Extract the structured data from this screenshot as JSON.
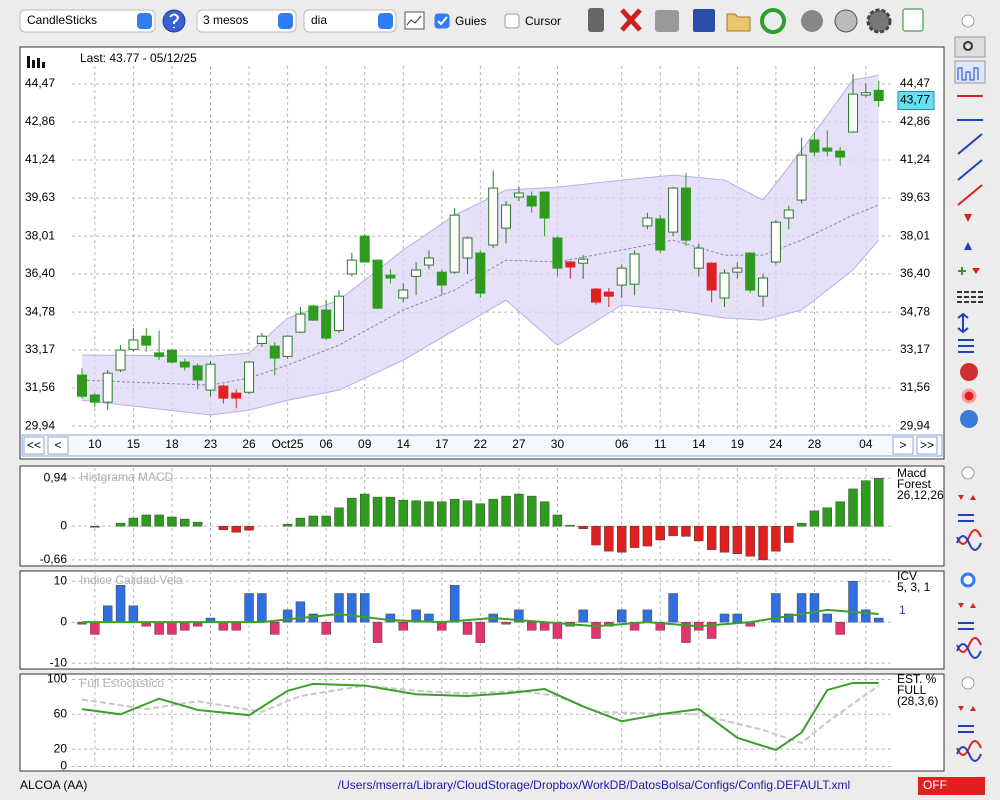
{
  "toolbar": {
    "selects": [
      "CandleSticks",
      "3 mesos",
      "dia"
    ],
    "checkboxes": [
      {
        "label": "Guies",
        "checked": true
      },
      {
        "label": "Cursor",
        "checked": false
      }
    ]
  },
  "chart_data": [
    {
      "type": "candlestick",
      "title": "Last: 43.77 - 05/12/25",
      "categories": [
        null,
        "10",
        null,
        null,
        "15",
        null,
        null,
        "18",
        null,
        null,
        "23",
        null,
        null,
        "26",
        null,
        null,
        "Oct25",
        null,
        null,
        "06",
        null,
        null,
        "09",
        null,
        null,
        "14",
        null,
        null,
        "17",
        null,
        null,
        "22",
        null,
        null,
        "27",
        null,
        null,
        "30",
        null,
        null,
        null,
        null,
        "06",
        null,
        null,
        "11",
        null,
        null,
        "14",
        null,
        null,
        "19",
        null,
        null,
        "24",
        null,
        null,
        "28",
        null,
        null,
        null,
        "04",
        null
      ],
      "open": [
        32.11,
        31.26,
        30.96,
        32.32,
        33.2,
        33.76,
        33.05,
        33.17,
        32.66,
        32.5,
        31.47,
        31.64,
        31.34,
        31.38,
        33.45,
        33.34,
        32.9,
        33.93,
        35.04,
        34.87,
        34.0,
        36.4,
        38.01,
        36.99,
        36.35,
        35.38,
        36.3,
        36.78,
        36.48,
        36.48,
        37.08,
        37.29,
        37.63,
        38.35,
        39.67,
        39.71,
        39.88,
        37.93,
        36.91,
        36.86,
        35.76,
        35.63,
        35.93,
        35.97,
        38.44,
        38.74,
        38.18,
        40.05,
        36.65,
        36.86,
        35.38,
        36.48,
        37.29,
        35.46,
        36.91,
        38.78,
        39.54,
        42.09,
        41.75,
        41.62,
        42.43,
        44.0,
        44.2
      ],
      "high": [
        32.4,
        31.34,
        32.32,
        33.38,
        34.1,
        34.1,
        34.0,
        33.2,
        32.8,
        32.6,
        32.7,
        31.7,
        31.5,
        32.7,
        33.9,
        33.5,
        33.8,
        35.0,
        35.1,
        35.3,
        35.7,
        37.3,
        38.1,
        37.0,
        36.6,
        36.0,
        36.9,
        37.4,
        36.6,
        39.2,
        38.0,
        37.4,
        40.8,
        39.5,
        40.1,
        39.9,
        39.9,
        38.0,
        36.95,
        37.2,
        35.8,
        35.8,
        36.8,
        37.4,
        39.0,
        38.9,
        40.1,
        40.7,
        37.7,
        36.9,
        36.6,
        36.9,
        37.3,
        36.4,
        38.7,
        39.3,
        42.2,
        42.4,
        42.5,
        41.8,
        44.9,
        44.5,
        44.6
      ],
      "low": [
        31.1,
        30.75,
        30.62,
        32.23,
        33.1,
        33.1,
        32.75,
        32.6,
        32.3,
        31.5,
        31.2,
        30.9,
        30.7,
        31.3,
        33.3,
        32.1,
        32.8,
        33.9,
        34.4,
        33.6,
        33.9,
        36.3,
        36.9,
        34.9,
        36.0,
        35.2,
        35.5,
        36.6,
        35.5,
        36.4,
        36.4,
        35.4,
        37.5,
        37.7,
        39.5,
        39.0,
        38.0,
        36.3,
        36.2,
        36.2,
        35.1,
        35.0,
        35.4,
        35.5,
        38.3,
        37.3,
        38.0,
        37.6,
        36.3,
        35.2,
        35.0,
        36.2,
        35.6,
        35.0,
        36.8,
        38.3,
        39.4,
        41.4,
        41.4,
        41.0,
        42.4,
        43.9,
        43.5
      ],
      "close": [
        31.21,
        30.96,
        32.19,
        33.17,
        33.6,
        33.38,
        32.9,
        32.66,
        32.45,
        31.9,
        32.57,
        31.13,
        31.13,
        32.66,
        33.76,
        32.83,
        33.76,
        34.7,
        34.44,
        33.68,
        35.46,
        36.99,
        36.91,
        34.95,
        36.23,
        35.72,
        36.57,
        37.08,
        35.93,
        38.9,
        37.93,
        35.59,
        40.05,
        39.33,
        39.84,
        39.29,
        38.78,
        36.65,
        36.7,
        37.03,
        35.21,
        35.46,
        36.65,
        37.25,
        38.78,
        37.42,
        40.05,
        37.84,
        37.5,
        35.72,
        36.44,
        36.65,
        35.72,
        36.23,
        38.6,
        39.12,
        41.45,
        41.58,
        41.62,
        41.37,
        44.04,
        44.1,
        43.77
      ],
      "candle_colors": [
        "#2e9a1e",
        "#2e9a1e",
        "#ffffff",
        "#ffffff",
        "#ffffff",
        "#2e9a1e",
        "#2e9a1e",
        "#2e9a1e",
        "#2e9a1e",
        "#2e9a1e",
        "#ffffff",
        "#e02020",
        "#e02020",
        "#ffffff",
        "#ffffff",
        "#2e9a1e",
        "#ffffff",
        "#ffffff",
        "#2e9a1e",
        "#2e9a1e",
        "#ffffff",
        "#ffffff",
        "#2e9a1e",
        "#2e9a1e",
        "#2e9a1e",
        "#ffffff",
        "#ffffff",
        "#ffffff",
        "#2e9a1e",
        "#ffffff",
        "#ffffff",
        "#2e9a1e",
        "#ffffff",
        "#ffffff",
        "#ffffff",
        "#2e9a1e",
        "#2e9a1e",
        "#2e9a1e",
        "#e02020",
        "#ffffff",
        "#e02020",
        "#e02020",
        "#ffffff",
        "#ffffff",
        "#ffffff",
        "#2e9a1e",
        "#ffffff",
        "#2e9a1e",
        "#ffffff",
        "#e02020",
        "#ffffff",
        "#ffffff",
        "#2e9a1e",
        "#ffffff",
        "#ffffff",
        "#ffffff",
        "#ffffff",
        "#2e9a1e",
        "#2e9a1e",
        "#2e9a1e",
        "#ffffff",
        "#ffffff",
        "#2e9a1e"
      ],
      "hollow_edge": "#2a7a2a",
      "bands": {
        "x": [
          0,
          10,
          13,
          16,
          20,
          25,
          29,
          33,
          37,
          42,
          46,
          50,
          53,
          56,
          60,
          62
        ],
        "upper": [
          32.96,
          32.91,
          33.04,
          34.53,
          35.29,
          37.42,
          38.9,
          39.97,
          40.09,
          40.39,
          40.6,
          40.39,
          39.54,
          41.66,
          44.64,
          44.85
        ],
        "middle": [
          31.89,
          31.68,
          31.98,
          32.53,
          33.38,
          34.87,
          35.72,
          36.99,
          36.91,
          37.42,
          37.84,
          37.2,
          37.2,
          37.84,
          38.9,
          39.33
        ],
        "lower": [
          31.04,
          30.41,
          30.62,
          31.04,
          31.47,
          32.74,
          34.02,
          35.29,
          33.38,
          35.08,
          34.87,
          34.53,
          34.44,
          34.87,
          36.57,
          37.84
        ],
        "color": "#ddd6f7"
      },
      "last_price": {
        "value": 43.77,
        "label": "43,77"
      },
      "ylim": [
        29.69,
        45.15
      ],
      "yticks": [
        {
          "value": 29.94,
          "label": "29,94"
        },
        {
          "value": 31.56,
          "label": "31,56"
        },
        {
          "value": 33.17,
          "label": "33,17"
        },
        {
          "value": 34.78,
          "label": "34,78"
        },
        {
          "value": 36.4,
          "label": "36,40"
        },
        {
          "value": 38.01,
          "label": "38,01"
        },
        {
          "value": 39.63,
          "label": "39,63"
        },
        {
          "value": 41.24,
          "label": "41,24"
        },
        {
          "value": 42.86,
          "label": "42,86"
        },
        {
          "value": 44.47,
          "label": "44,47"
        }
      ],
      "grid": true,
      "nav": [
        "<<",
        "<",
        ">",
        ">>"
      ]
    },
    {
      "type": "bar",
      "title": "Histgrama MACD",
      "legend": [
        "Macd",
        "Forest",
        "26,12,26"
      ],
      "values": [
        0,
        -0.02,
        0,
        0.06,
        0.16,
        0.22,
        0.22,
        0.18,
        0.14,
        0.08,
        0,
        -0.07,
        -0.12,
        -0.08,
        0,
        0,
        0.04,
        0.16,
        0.2,
        0.2,
        0.36,
        0.55,
        0.63,
        0.57,
        0.57,
        0.51,
        0.5,
        0.48,
        0.48,
        0.53,
        0.5,
        0.44,
        0.53,
        0.59,
        0.63,
        0.59,
        0.48,
        0.22,
        0.02,
        -0.05,
        -0.37,
        -0.49,
        -0.51,
        -0.42,
        -0.39,
        -0.27,
        -0.19,
        -0.2,
        -0.29,
        -0.46,
        -0.51,
        -0.54,
        -0.59,
        -0.66,
        -0.49,
        -0.32,
        0.06,
        0.3,
        0.36,
        0.48,
        0.73,
        0.89,
        0.94
      ],
      "colors": {
        "positive": "#2e9a1e",
        "negative": "#e02020"
      },
      "ylim": [
        -0.76,
        1.1
      ],
      "yticks": [
        {
          "value": 0.94,
          "label": "0,94"
        },
        0,
        {
          "value": -0.66,
          "label": "-0,66"
        }
      ],
      "grid": true
    },
    {
      "type": "bar",
      "title": "Indice Calidad Vela",
      "legend": [
        "ICV",
        "5, 3, 1"
      ],
      "values": [
        -0.5,
        -3,
        4,
        9,
        4,
        -1,
        -3,
        -3,
        -2,
        -1,
        1,
        -2,
        -2,
        7,
        7,
        -3,
        3,
        5,
        2,
        -3,
        7,
        7,
        7,
        -5,
        2,
        -2,
        3,
        2,
        -2,
        9,
        -3,
        -5,
        2,
        -0.5,
        3,
        -2,
        -2,
        -4,
        -1,
        3,
        -4,
        -1,
        3,
        -2,
        3,
        -2,
        7,
        -5,
        -2,
        -4,
        2,
        2,
        -1,
        0,
        7,
        2,
        7,
        7,
        2,
        -3,
        10,
        3,
        1
      ],
      "colors": {
        "positive": "#2f6fe0",
        "negative": "#e0356f"
      },
      "signal": {
        "x": [
          0,
          10,
          14,
          17,
          20,
          24,
          28,
          32,
          36,
          40,
          44,
          48,
          52,
          56,
          58,
          62
        ],
        "values": [
          0,
          0,
          0,
          1,
          2,
          0.5,
          0,
          1,
          0,
          -1,
          0,
          -1,
          0,
          2,
          3,
          2
        ],
        "color": "#3aa02a"
      },
      "last_value": 1,
      "ylim": [
        -11.2,
        12
      ],
      "yticks": [
        10,
        0,
        -10
      ],
      "grid": true
    },
    {
      "type": "line",
      "title": "Full Estocastico",
      "legend": [
        "EST. %",
        "FULL",
        "(28,3,6)"
      ],
      "series": [
        {
          "name": "K",
          "color": "#3aa02a",
          "dash": false,
          "x": [
            0,
            3,
            6,
            9,
            13,
            16,
            18,
            22,
            26,
            30,
            33,
            36,
            39,
            42,
            45,
            48,
            51,
            54,
            56,
            58,
            60,
            62
          ],
          "values": [
            66,
            60,
            78,
            65,
            59,
            87,
            95,
            93,
            83,
            81,
            84,
            89,
            69,
            52,
            60,
            66,
            33,
            19,
            39,
            88,
            96,
            96
          ]
        },
        {
          "name": "D",
          "color": "#c8c8c8",
          "dash": true,
          "x": [
            0,
            5,
            9,
            14,
            17,
            22,
            26,
            30,
            34,
            37,
            40,
            44,
            48,
            53,
            56,
            58,
            62
          ],
          "values": [
            77,
            66,
            75,
            63,
            81,
            93,
            87,
            84,
            87,
            81,
            63,
            61,
            60,
            42,
            27,
            51,
            93
          ]
        }
      ],
      "ylim": [
        -4,
        104
      ],
      "yticks": [
        100,
        60,
        20,
        0
      ],
      "grid": true
    }
  ],
  "status": {
    "symbol": "ALCOA (AA)",
    "path": "/Users/mserra/Library/CloudStorage/Dropbox/WorkDB/DatosBolsa/Configs/Config.DEFAULT.xml",
    "mode": "OFF"
  }
}
